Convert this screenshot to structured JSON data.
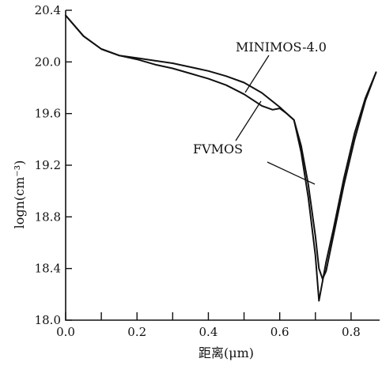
{
  "chart_data": {
    "type": "line",
    "title": "",
    "xlabel": "距离(μm)",
    "ylabel": "logn(cm⁻³)",
    "xlim": [
      0.0,
      0.88
    ],
    "ylim": [
      18.0,
      20.4
    ],
    "x_ticks": [
      0.0,
      0.2,
      0.4,
      0.6,
      0.8
    ],
    "x_tick_labels": [
      "0.0",
      "0.2",
      "0.4",
      "0.6",
      "0.8"
    ],
    "x_minor_ticks": [
      0.1,
      0.3,
      0.5,
      0.7
    ],
    "y_ticks": [
      18.0,
      18.4,
      18.8,
      19.2,
      19.6,
      20.0,
      20.4
    ],
    "y_tick_labels": [
      "18.0",
      "18.4",
      "18.8",
      "19.2",
      "19.6",
      "20.0",
      "20.4"
    ],
    "grid": false,
    "series": [
      {
        "name": "MINIMOS-4.0",
        "x": [
          0.0,
          0.05,
          0.1,
          0.15,
          0.2,
          0.25,
          0.3,
          0.35,
          0.4,
          0.45,
          0.5,
          0.55,
          0.6,
          0.62,
          0.64,
          0.66,
          0.68,
          0.7,
          0.71,
          0.72,
          0.73,
          0.75,
          0.78,
          0.81,
          0.84,
          0.87
        ],
        "y": [
          20.36,
          20.2,
          20.1,
          20.05,
          20.03,
          20.01,
          19.99,
          19.96,
          19.93,
          19.89,
          19.84,
          19.76,
          19.65,
          19.6,
          19.55,
          19.35,
          19.05,
          18.65,
          18.4,
          18.32,
          18.38,
          18.65,
          19.05,
          19.4,
          19.7,
          19.92
        ]
      },
      {
        "name": "FVMOS",
        "x": [
          0.0,
          0.05,
          0.1,
          0.15,
          0.2,
          0.25,
          0.3,
          0.35,
          0.4,
          0.45,
          0.5,
          0.55,
          0.58,
          0.6,
          0.62,
          0.64,
          0.66,
          0.68,
          0.7,
          0.71,
          0.72,
          0.73,
          0.75,
          0.78,
          0.81,
          0.84,
          0.87
        ],
        "y": [
          20.36,
          20.2,
          20.1,
          20.05,
          20.02,
          19.98,
          19.95,
          19.91,
          19.87,
          19.82,
          19.75,
          19.66,
          19.63,
          19.64,
          19.6,
          19.55,
          19.3,
          18.95,
          18.5,
          18.15,
          18.3,
          18.45,
          18.7,
          19.1,
          19.45,
          19.72,
          19.92
        ]
      }
    ],
    "annotations": [
      "MINIMOS-4.0",
      "FVMOS"
    ]
  }
}
